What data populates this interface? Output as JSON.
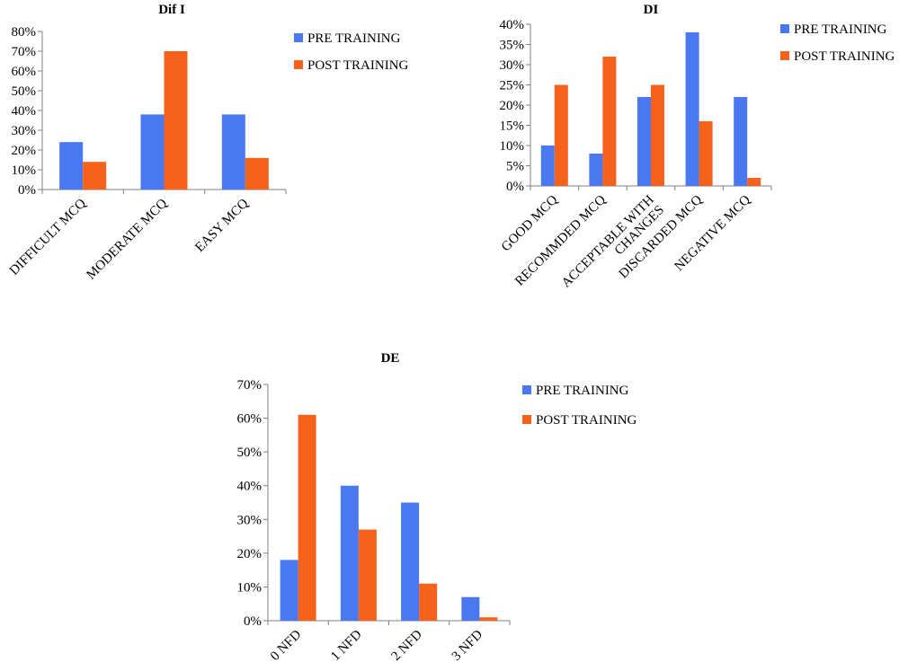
{
  "colors": {
    "pre": "#4a78f0",
    "post": "#f4621c",
    "axis": "#808080"
  },
  "chart_data": [
    {
      "type": "bar",
      "title": "Dif I",
      "categories": [
        "DIFFICULT MCQ",
        "MODERATE MCQ",
        "EASY MCQ"
      ],
      "series": [
        {
          "name": "PRE TRAINING",
          "values": [
            24,
            38,
            38
          ]
        },
        {
          "name": "POST TRAINING",
          "values": [
            14,
            70,
            16
          ]
        }
      ],
      "ylim": [
        0,
        80
      ],
      "yticks": [
        "0%",
        "10%",
        "20%",
        "30%",
        "40%",
        "50%",
        "60%",
        "70%",
        "80%"
      ],
      "grid": false,
      "legend": "right"
    },
    {
      "type": "bar",
      "title": "DI",
      "categories": [
        "GOOD MCQ",
        "RECOMMDED MCQ",
        "ACCEPTABLE WITH CHANGES",
        "DISCARDED MCQ",
        "NEGATIVE MCQ"
      ],
      "series": [
        {
          "name": "PRE TRAINING",
          "values": [
            10,
            8,
            22,
            38,
            22
          ]
        },
        {
          "name": "POST TRAINING",
          "values": [
            25,
            32,
            25,
            16,
            2
          ]
        }
      ],
      "ylim": [
        0,
        40
      ],
      "yticks": [
        "0%",
        "5%",
        "10%",
        "15%",
        "20%",
        "25%",
        "30%",
        "35%",
        "40%"
      ],
      "grid": false,
      "legend": "right"
    },
    {
      "type": "bar",
      "title": "DE",
      "categories": [
        "0 NFD",
        "1 NFD",
        "2 NFD",
        "3 NFD"
      ],
      "series": [
        {
          "name": "PRE TRAINING",
          "values": [
            18,
            40,
            35,
            7
          ]
        },
        {
          "name": "POST TRAINING",
          "values": [
            61,
            27,
            11,
            1
          ]
        }
      ],
      "ylim": [
        0,
        70
      ],
      "yticks": [
        "0%",
        "10%",
        "20%",
        "30%",
        "40%",
        "50%",
        "60%",
        "70%"
      ],
      "grid": false,
      "legend": "right"
    }
  ]
}
